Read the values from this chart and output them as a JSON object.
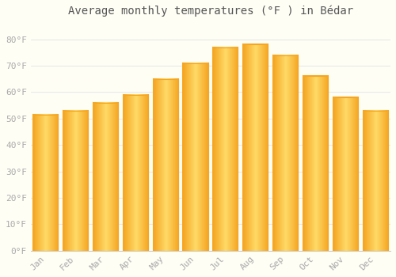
{
  "title": "Average monthly temperatures (°F ) in Bédar",
  "months": [
    "Jan",
    "Feb",
    "Mar",
    "Apr",
    "May",
    "Jun",
    "Jul",
    "Aug",
    "Sep",
    "Oct",
    "Nov",
    "Dec"
  ],
  "values": [
    51.5,
    53,
    56,
    59,
    65,
    71,
    77,
    78,
    74,
    66,
    58,
    53
  ],
  "bar_color_center": "#FFD966",
  "bar_color_edge": "#F5A623",
  "background_color": "#FFFEF5",
  "grid_color": "#E8E8E8",
  "ylim": [
    0,
    86
  ],
  "yticks": [
    0,
    10,
    20,
    30,
    40,
    50,
    60,
    70,
    80
  ],
  "title_fontsize": 10,
  "tick_fontsize": 8,
  "bar_width": 0.82,
  "tick_color": "#AAAAAA",
  "spine_color": "#CCCCCC"
}
